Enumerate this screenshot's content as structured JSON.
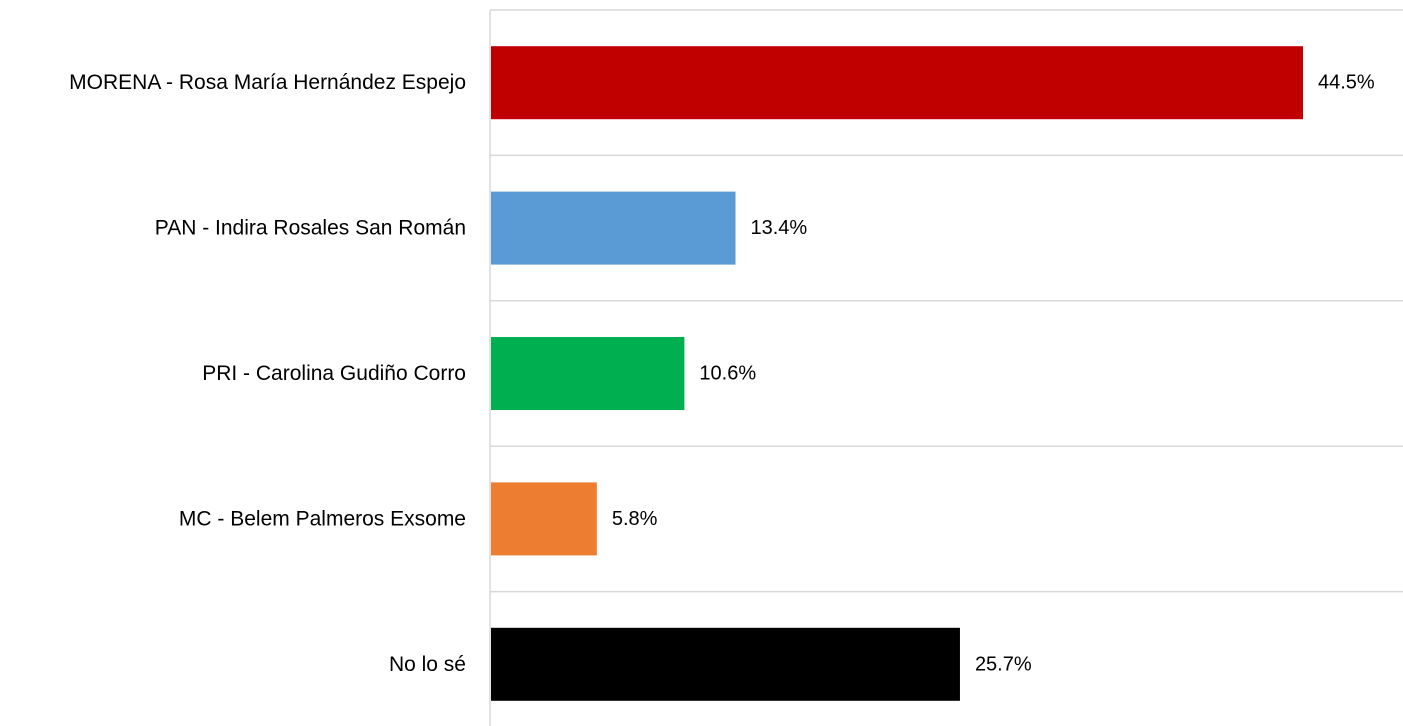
{
  "chart_data": {
    "type": "bar",
    "orientation": "horizontal",
    "categories": [
      "MORENA - Rosa María Hernández Espejo",
      "PAN - Indira Rosales San Román",
      "PRI - Carolina Gudiño Corro",
      "MC - Belem Palmeros Exsome",
      "No lo sé"
    ],
    "values": [
      44.5,
      13.4,
      10.6,
      5.8,
      25.7
    ],
    "value_labels": [
      "44.5%",
      "13.4%",
      "10.6%",
      "5.8%",
      "25.7%"
    ],
    "colors": [
      "#c00000",
      "#5b9bd5",
      "#00b050",
      "#ed7d31",
      "#000000"
    ],
    "xlim": [
      0,
      48
    ],
    "grid": true,
    "legend": "none",
    "title": "",
    "xlabel": "",
    "ylabel": ""
  }
}
